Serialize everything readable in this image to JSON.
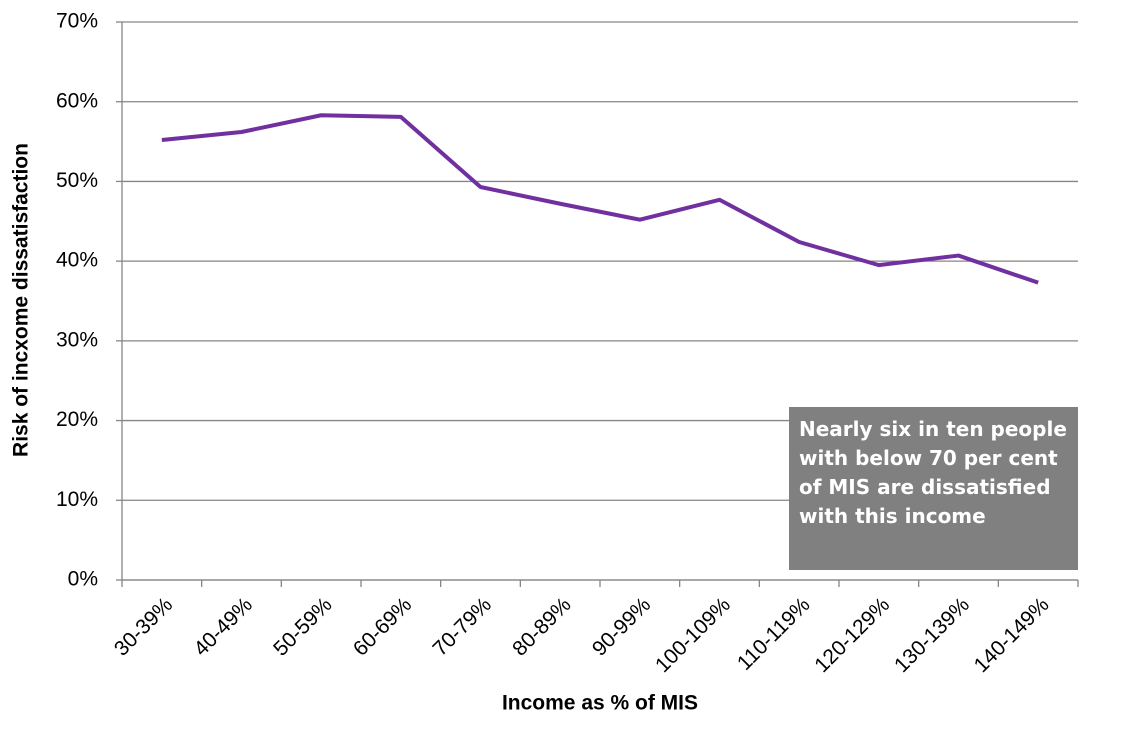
{
  "chart_data": {
    "type": "line",
    "x_label": "Income as % of MIS",
    "y_label": "Risk of incxome dissatisfaction",
    "annotation": "Nearly six in ten people with below 70 per cent of MIS are dissatisfied with this income",
    "categories": [
      "30-39%",
      "40-49%",
      "50-59%",
      "60-69%",
      "70-79%",
      "80-89%",
      "90-99%",
      "100-109%",
      "110-119%",
      "120-129%",
      "130-139%",
      "140-149%"
    ],
    "series": [
      {
        "name": "Risk of incxome dissatisfaction",
        "color": "#7030a0",
        "values": [
          55.2,
          56.2,
          58.3,
          58.1,
          49.3,
          47.2,
          45.2,
          47.7,
          42.4,
          39.5,
          40.7,
          37.3
        ]
      }
    ],
    "ylim": [
      0,
      70
    ],
    "yticks": [
      {
        "value": 0,
        "label": "0%"
      },
      {
        "value": 10,
        "label": "10%"
      },
      {
        "value": 20,
        "label": "20%"
      },
      {
        "value": 30,
        "label": "30%"
      },
      {
        "value": 40,
        "label": "40%"
      },
      {
        "value": 50,
        "label": "50%"
      },
      {
        "value": 60,
        "label": "60%"
      },
      {
        "value": 70,
        "label": "70%"
      }
    ],
    "grid": true
  }
}
